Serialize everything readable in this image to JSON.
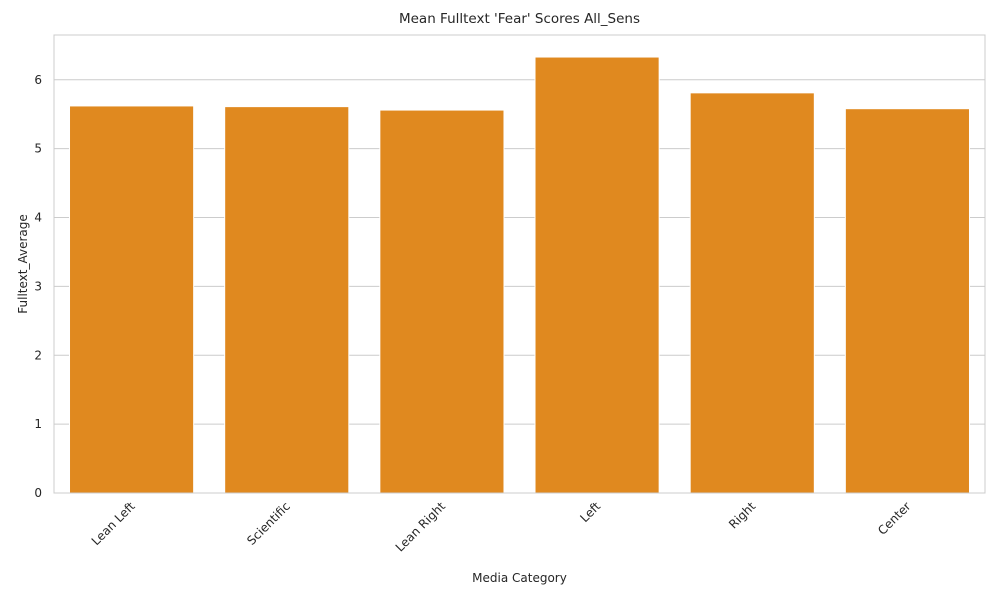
{
  "chart_data": {
    "type": "bar",
    "title": "Mean Fulltext 'Fear' Scores All_Sens",
    "xlabel": "Media Category",
    "ylabel": "Fulltext_Average",
    "categories": [
      "Lean Left",
      "Scientific",
      "Lean Right",
      "Left",
      "Right",
      "Center"
    ],
    "values": [
      5.62,
      5.61,
      5.56,
      6.33,
      5.81,
      5.58
    ],
    "ylim": [
      0,
      6.65
    ],
    "yticks": [
      "0",
      "1",
      "2",
      "3",
      "4",
      "5",
      "6"
    ],
    "grid": "horizontal",
    "bar_color": "#e0891f",
    "legend": "none"
  }
}
